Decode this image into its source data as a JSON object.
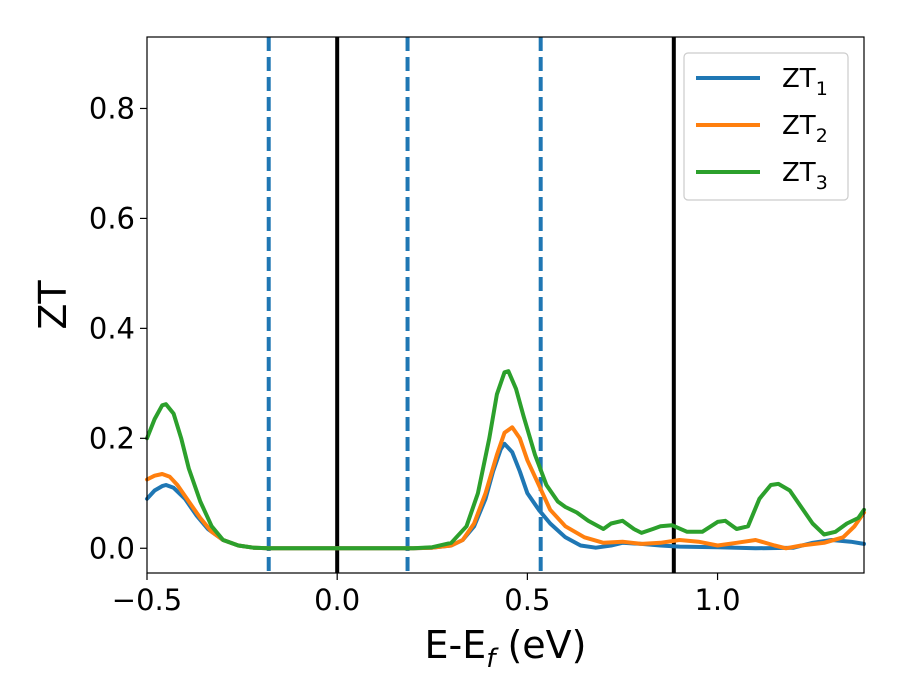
{
  "chart_data": {
    "type": "line",
    "xlabel": "E-E",
    "xlabel_subscript": "f",
    "xlabel_unit": " (eV)",
    "ylabel": "ZT",
    "xlim": [
      -0.5,
      1.385
    ],
    "ylim": [
      -0.045,
      0.93
    ],
    "xticks": [
      -0.5,
      0.0,
      0.5,
      1.0
    ],
    "xtick_labels": [
      "−0.5",
      "0.0",
      "0.5",
      "1.0"
    ],
    "yticks": [
      0.0,
      0.2,
      0.4,
      0.6,
      0.8
    ],
    "ytick_labels": [
      "0.0",
      "0.2",
      "0.4",
      "0.6",
      "0.8"
    ],
    "grid": false,
    "legend_position": "top-right",
    "vlines": [
      {
        "x": -0.18,
        "style": "dashed",
        "color": "#1f77b4"
      },
      {
        "x": 0.0,
        "style": "solid",
        "color": "#000000"
      },
      {
        "x": 0.185,
        "style": "dashed",
        "color": "#1f77b4"
      },
      {
        "x": 0.535,
        "style": "dashed",
        "color": "#1f77b4"
      },
      {
        "x": 0.885,
        "style": "solid",
        "color": "#000000"
      }
    ],
    "series": [
      {
        "name": "ZT",
        "subscript": "1",
        "color": "#1f77b4",
        "points": [
          [
            -0.5,
            0.09
          ],
          [
            -0.48,
            0.105
          ],
          [
            -0.46,
            0.113
          ],
          [
            -0.45,
            0.115
          ],
          [
            -0.43,
            0.11
          ],
          [
            -0.4,
            0.09
          ],
          [
            -0.37,
            0.06
          ],
          [
            -0.34,
            0.035
          ],
          [
            -0.3,
            0.015
          ],
          [
            -0.26,
            0.005
          ],
          [
            -0.22,
            0.001
          ],
          [
            -0.18,
            0.0
          ],
          [
            0.0,
            0.0
          ],
          [
            0.2,
            0.0
          ],
          [
            0.25,
            0.001
          ],
          [
            0.3,
            0.005
          ],
          [
            0.33,
            0.015
          ],
          [
            0.36,
            0.04
          ],
          [
            0.39,
            0.09
          ],
          [
            0.41,
            0.14
          ],
          [
            0.43,
            0.18
          ],
          [
            0.44,
            0.19
          ],
          [
            0.46,
            0.175
          ],
          [
            0.48,
            0.14
          ],
          [
            0.5,
            0.1
          ],
          [
            0.53,
            0.07
          ],
          [
            0.56,
            0.045
          ],
          [
            0.6,
            0.02
          ],
          [
            0.64,
            0.005
          ],
          [
            0.68,
            0.001
          ],
          [
            0.72,
            0.005
          ],
          [
            0.75,
            0.01
          ],
          [
            0.8,
            0.008
          ],
          [
            0.85,
            0.005
          ],
          [
            0.9,
            0.003
          ],
          [
            1.0,
            0.002
          ],
          [
            1.1,
            0.0
          ],
          [
            1.2,
            0.001
          ],
          [
            1.25,
            0.01
          ],
          [
            1.3,
            0.015
          ],
          [
            1.35,
            0.012
          ],
          [
            1.385,
            0.008
          ]
        ]
      },
      {
        "name": "ZT",
        "subscript": "2",
        "color": "#ff7f0e",
        "points": [
          [
            -0.5,
            0.125
          ],
          [
            -0.48,
            0.132
          ],
          [
            -0.46,
            0.135
          ],
          [
            -0.44,
            0.13
          ],
          [
            -0.42,
            0.115
          ],
          [
            -0.39,
            0.085
          ],
          [
            -0.36,
            0.055
          ],
          [
            -0.33,
            0.03
          ],
          [
            -0.3,
            0.015
          ],
          [
            -0.26,
            0.005
          ],
          [
            -0.22,
            0.001
          ],
          [
            -0.18,
            0.0
          ],
          [
            0.0,
            0.0
          ],
          [
            0.2,
            0.0
          ],
          [
            0.25,
            0.001
          ],
          [
            0.3,
            0.005
          ],
          [
            0.33,
            0.015
          ],
          [
            0.36,
            0.045
          ],
          [
            0.39,
            0.1
          ],
          [
            0.42,
            0.17
          ],
          [
            0.44,
            0.21
          ],
          [
            0.46,
            0.22
          ],
          [
            0.48,
            0.2
          ],
          [
            0.5,
            0.16
          ],
          [
            0.53,
            0.115
          ],
          [
            0.56,
            0.07
          ],
          [
            0.6,
            0.04
          ],
          [
            0.65,
            0.02
          ],
          [
            0.7,
            0.01
          ],
          [
            0.75,
            0.012
          ],
          [
            0.8,
            0.008
          ],
          [
            0.85,
            0.01
          ],
          [
            0.9,
            0.015
          ],
          [
            0.95,
            0.012
          ],
          [
            1.0,
            0.005
          ],
          [
            1.05,
            0.01
          ],
          [
            1.1,
            0.015
          ],
          [
            1.15,
            0.005
          ],
          [
            1.18,
            0.0
          ],
          [
            1.22,
            0.005
          ],
          [
            1.28,
            0.01
          ],
          [
            1.33,
            0.02
          ],
          [
            1.36,
            0.04
          ],
          [
            1.385,
            0.065
          ]
        ]
      },
      {
        "name": "ZT",
        "subscript": "3",
        "color": "#2ca02c",
        "points": [
          [
            -0.5,
            0.2
          ],
          [
            -0.48,
            0.235
          ],
          [
            -0.46,
            0.26
          ],
          [
            -0.45,
            0.262
          ],
          [
            -0.43,
            0.245
          ],
          [
            -0.41,
            0.2
          ],
          [
            -0.39,
            0.145
          ],
          [
            -0.36,
            0.085
          ],
          [
            -0.33,
            0.04
          ],
          [
            -0.3,
            0.015
          ],
          [
            -0.26,
            0.005
          ],
          [
            -0.22,
            0.001
          ],
          [
            -0.18,
            0.0
          ],
          [
            0.0,
            0.0
          ],
          [
            0.2,
            0.0
          ],
          [
            0.25,
            0.002
          ],
          [
            0.3,
            0.01
          ],
          [
            0.34,
            0.04
          ],
          [
            0.37,
            0.1
          ],
          [
            0.4,
            0.2
          ],
          [
            0.42,
            0.28
          ],
          [
            0.44,
            0.32
          ],
          [
            0.45,
            0.322
          ],
          [
            0.47,
            0.29
          ],
          [
            0.49,
            0.24
          ],
          [
            0.52,
            0.17
          ],
          [
            0.55,
            0.115
          ],
          [
            0.58,
            0.085
          ],
          [
            0.6,
            0.075
          ],
          [
            0.63,
            0.065
          ],
          [
            0.66,
            0.05
          ],
          [
            0.7,
            0.035
          ],
          [
            0.72,
            0.045
          ],
          [
            0.75,
            0.05
          ],
          [
            0.78,
            0.035
          ],
          [
            0.8,
            0.028
          ],
          [
            0.83,
            0.035
          ],
          [
            0.85,
            0.04
          ],
          [
            0.88,
            0.042
          ],
          [
            0.92,
            0.03
          ],
          [
            0.96,
            0.03
          ],
          [
            1.0,
            0.048
          ],
          [
            1.02,
            0.05
          ],
          [
            1.05,
            0.035
          ],
          [
            1.08,
            0.04
          ],
          [
            1.11,
            0.09
          ],
          [
            1.14,
            0.115
          ],
          [
            1.16,
            0.117
          ],
          [
            1.19,
            0.105
          ],
          [
            1.22,
            0.075
          ],
          [
            1.25,
            0.045
          ],
          [
            1.28,
            0.025
          ],
          [
            1.31,
            0.03
          ],
          [
            1.34,
            0.045
          ],
          [
            1.37,
            0.055
          ],
          [
            1.385,
            0.07
          ]
        ]
      }
    ]
  }
}
